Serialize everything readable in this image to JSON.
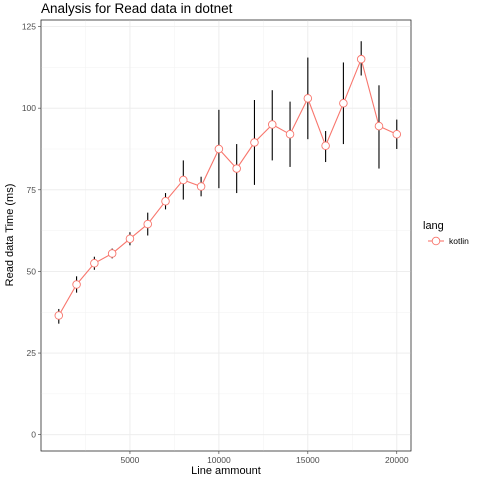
{
  "chart_data": {
    "type": "line",
    "title": "Analysis for Read data in dotnet",
    "xlabel": "Line ammount",
    "ylabel": "Read data Time (ms)",
    "xlim": [
      0,
      20800
    ],
    "ylim": [
      -5,
      127
    ],
    "x_ticks": [
      5000,
      10000,
      15000,
      20000
    ],
    "x_tick_labels": [
      "5000",
      "10000",
      "15000",
      "20000"
    ],
    "y_ticks": [
      0,
      25,
      50,
      75,
      100,
      125
    ],
    "y_tick_labels": [
      "0",
      "25",
      "50",
      "75",
      "100",
      "125"
    ],
    "grid": true,
    "legend": {
      "title": "lang",
      "position": "right"
    },
    "series": [
      {
        "name": "kotlin",
        "color": "#F8766D",
        "x": [
          1000,
          2000,
          3000,
          4000,
          5000,
          6000,
          7000,
          8000,
          9000,
          10000,
          11000,
          12000,
          13000,
          14000,
          15000,
          16000,
          17000,
          18000,
          19000,
          20000
        ],
        "y": [
          36.5,
          46,
          52.5,
          55.5,
          60,
          64.5,
          71.5,
          78,
          76,
          87.5,
          81.5,
          89.5,
          95,
          92,
          103,
          88.5,
          101.5,
          115,
          94.5,
          92
        ],
        "err_low": [
          34,
          43.5,
          50.5,
          54,
          58,
          61,
          69,
          72,
          73,
          75.5,
          74,
          76.5,
          84,
          82,
          90.5,
          83.5,
          89,
          110,
          81.5,
          87.5
        ],
        "err_high": [
          38.5,
          48.5,
          54.5,
          57,
          62,
          68,
          74,
          84,
          79,
          99.5,
          89,
          102.5,
          105.5,
          102,
          115.5,
          93,
          114,
          120.5,
          107,
          96.5
        ]
      }
    ]
  }
}
